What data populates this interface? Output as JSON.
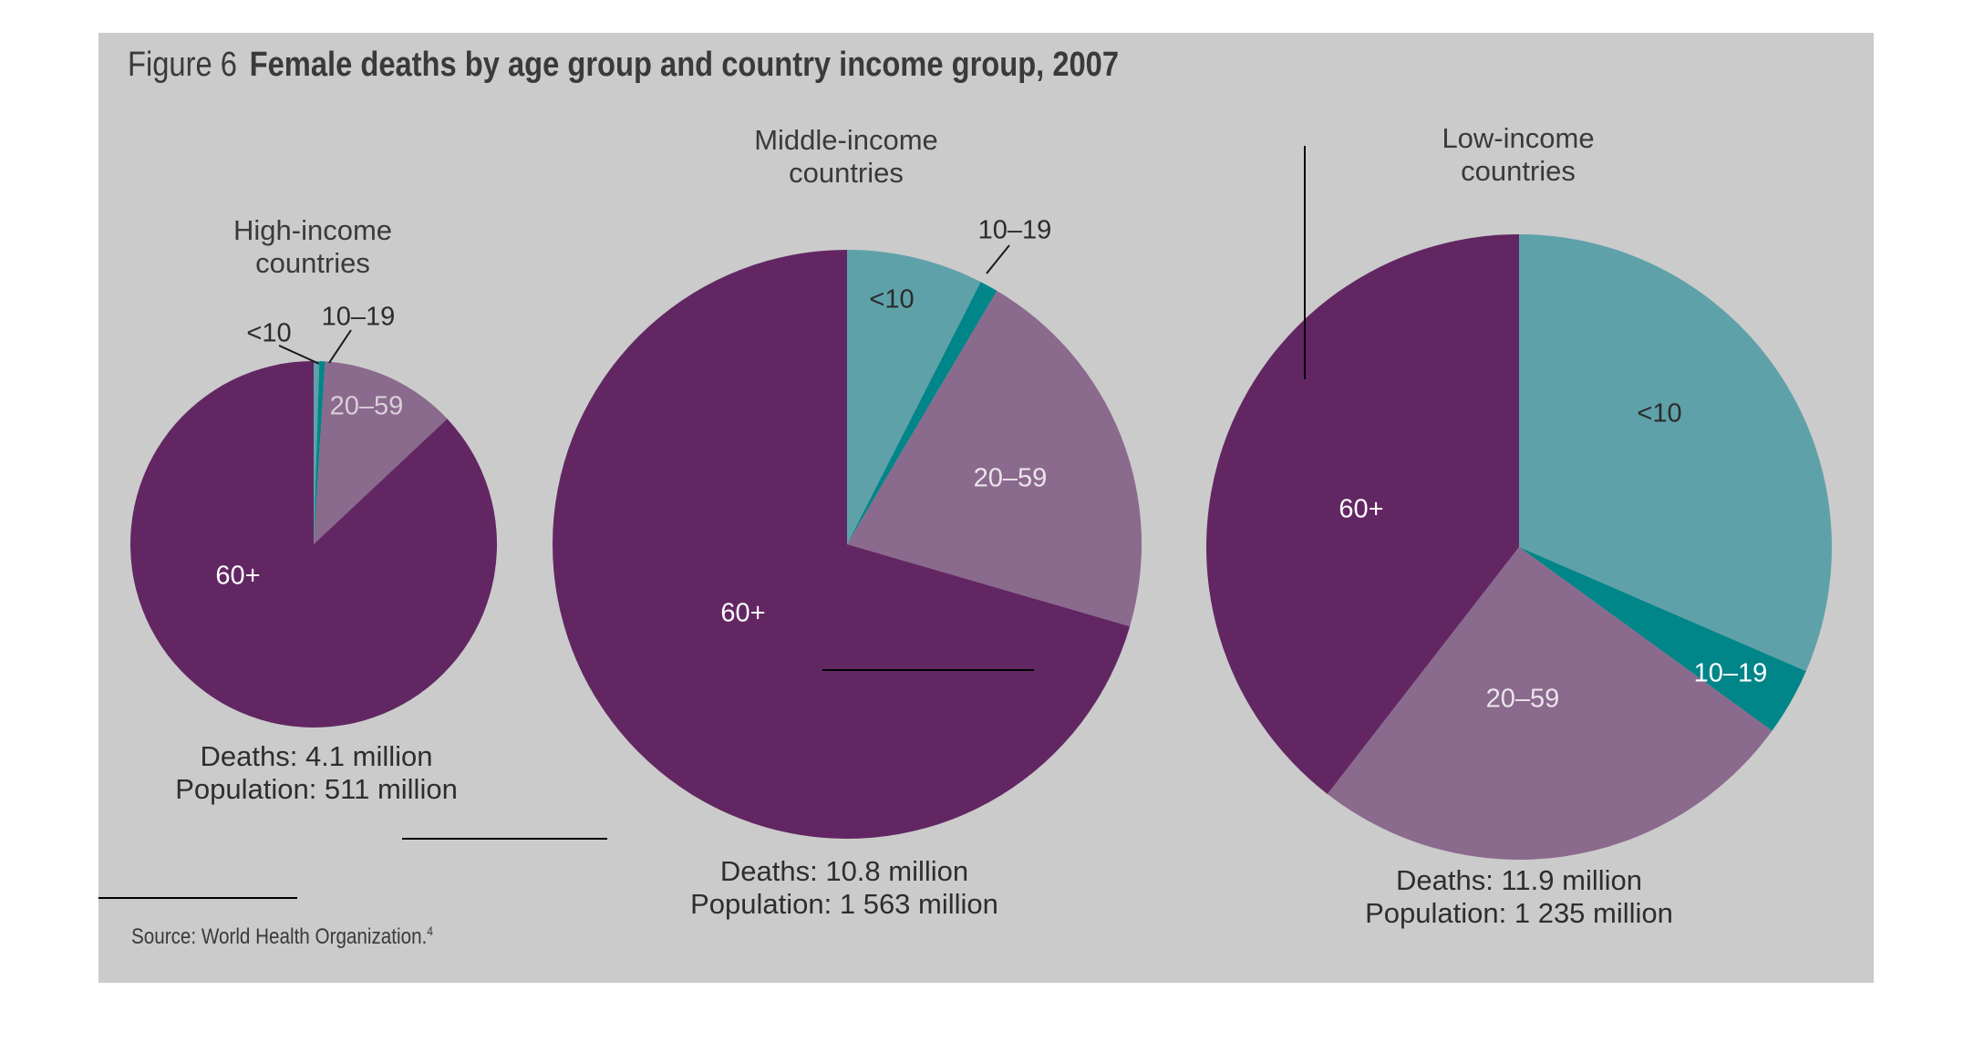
{
  "figure": {
    "number": "Figure 6",
    "title": "Female deaths by age group and country income group, 2007",
    "source": "Source: World Health Organization.",
    "source_ref": "4"
  },
  "colors": {
    "panel_bg": "#cbcbcb",
    "under_10": "#5fa1a9",
    "age_10_19": "#008589",
    "age_20_59": "#8a6a8d",
    "age_60_plus": "#622763"
  },
  "chart_data": [
    {
      "type": "pie",
      "title": "High-income\ncountries",
      "labels": [
        "<10",
        "10–19",
        "20–59",
        "60+"
      ],
      "values": [
        0.5,
        0.5,
        12,
        87
      ],
      "deaths_text": "Deaths: 4.1 million",
      "population_text": "Population: 511 million"
    },
    {
      "type": "pie",
      "title": "Middle-income\ncountries",
      "labels": [
        "<10",
        "10–19",
        "20–59",
        "60+"
      ],
      "values": [
        7.5,
        1,
        21,
        70.5
      ],
      "deaths_text": "Deaths: 10.8 million",
      "population_text": "Population: 1 563 million"
    },
    {
      "type": "pie",
      "title": "Low-income\ncountries",
      "labels": [
        "<10",
        "10–19",
        "20–59",
        "60+"
      ],
      "values": [
        31.5,
        3.5,
        25.5,
        39.5
      ],
      "deaths_text": "Deaths: 11.9 million",
      "population_text": "Population: 1 235 million"
    }
  ]
}
